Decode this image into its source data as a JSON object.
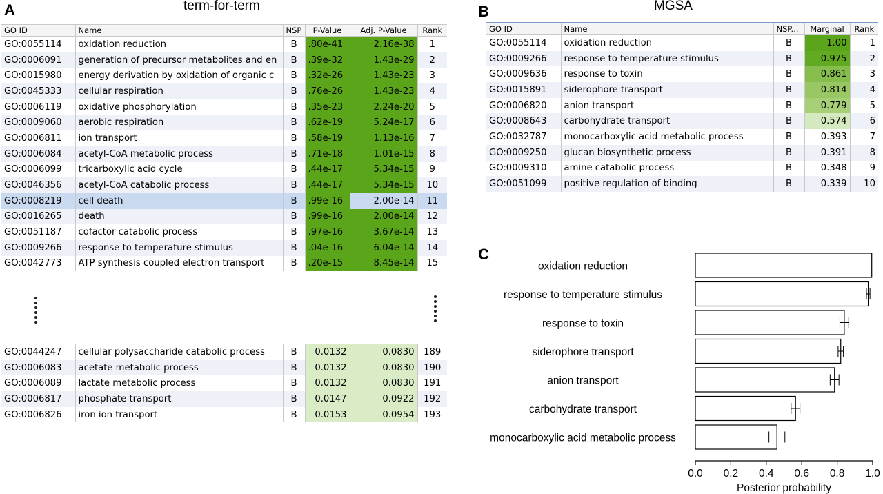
{
  "panel_a": {
    "letter": "A",
    "title": "term-for-term",
    "headers": [
      "GO ID",
      "Name",
      "NSP",
      "P-Value",
      "Adj. P-Value",
      "Rank"
    ],
    "rows_top": [
      {
        "id": "GO:0055114",
        "name": "oxidation reduction",
        "nsp": "B",
        "p": ".80e-41",
        "adj": "2.16e-38",
        "rank": "1"
      },
      {
        "id": "GO:0006091",
        "name": "generation of precursor metabolites and en",
        "nsp": "B",
        "p": ".39e-32",
        "adj": "1.43e-29",
        "rank": "2"
      },
      {
        "id": "GO:0015980",
        "name": "energy derivation by oxidation of organic c",
        "nsp": "B",
        "p": ".32e-26",
        "adj": "1.43e-23",
        "rank": "3"
      },
      {
        "id": "GO:0045333",
        "name": "cellular respiration",
        "nsp": "B",
        "p": ".76e-26",
        "adj": "1.43e-23",
        "rank": "4"
      },
      {
        "id": "GO:0006119",
        "name": "oxidative phosphorylation",
        "nsp": "B",
        "p": ".35e-23",
        "adj": "2.24e-20",
        "rank": "5"
      },
      {
        "id": "GO:0009060",
        "name": "aerobic respiration",
        "nsp": "B",
        "p": ".62e-19",
        "adj": "5.24e-17",
        "rank": "6"
      },
      {
        "id": "GO:0006811",
        "name": "ion transport",
        "nsp": "B",
        "p": ".58e-19",
        "adj": "1.13e-16",
        "rank": "7"
      },
      {
        "id": "GO:0006084",
        "name": "acetyl-CoA metabolic process",
        "nsp": "B",
        "p": ".71e-18",
        "adj": "1.01e-15",
        "rank": "8"
      },
      {
        "id": "GO:0006099",
        "name": "tricarboxylic acid cycle",
        "nsp": "B",
        "p": ".44e-17",
        "adj": "5.34e-15",
        "rank": "9"
      },
      {
        "id": "GO:0046356",
        "name": "acetyl-CoA catabolic process",
        "nsp": "B",
        "p": ".44e-17",
        "adj": "5.34e-15",
        "rank": "10"
      },
      {
        "id": "GO:0008219",
        "name": "cell death",
        "nsp": "B",
        "p": ".99e-16",
        "adj": "2.00e-14",
        "rank": "11"
      },
      {
        "id": "GO:0016265",
        "name": "death",
        "nsp": "B",
        "p": ".99e-16",
        "adj": "2.00e-14",
        "rank": "12"
      },
      {
        "id": "GO:0051187",
        "name": "cofactor catabolic process",
        "nsp": "B",
        "p": ".97e-16",
        "adj": "3.67e-14",
        "rank": "13"
      },
      {
        "id": "GO:0009266",
        "name": "response to temperature stimulus",
        "nsp": "B",
        "p": ".04e-16",
        "adj": "6.04e-14",
        "rank": "14"
      },
      {
        "id": "GO:0042773",
        "name": "ATP synthesis coupled electron transport",
        "nsp": "B",
        "p": ".20e-15",
        "adj": "8.45e-14",
        "rank": "15"
      }
    ],
    "rows_bottom": [
      {
        "id": "GO:0044247",
        "name": "cellular polysaccharide catabolic process",
        "nsp": "B",
        "p": "0.0132",
        "adj": "0.0830",
        "rank": "189"
      },
      {
        "id": "GO:0006083",
        "name": "acetate metabolic process",
        "nsp": "B",
        "p": "0.0132",
        "adj": "0.0830",
        "rank": "190"
      },
      {
        "id": "GO:0006089",
        "name": "lactate metabolic process",
        "nsp": "B",
        "p": "0.0132",
        "adj": "0.0830",
        "rank": "191"
      },
      {
        "id": "GO:0006817",
        "name": "phosphate transport",
        "nsp": "B",
        "p": "0.0147",
        "adj": "0.0922",
        "rank": "192"
      },
      {
        "id": "GO:0006826",
        "name": "iron ion transport",
        "nsp": "B",
        "p": "0.0153",
        "adj": "0.0954",
        "rank": "193"
      }
    ]
  },
  "panel_b": {
    "letter": "B",
    "title": "MGSA",
    "headers": [
      "GO ID",
      "Name",
      "NSP...",
      "Marginal",
      "Rank"
    ],
    "rows": [
      {
        "id": "GO:0055114",
        "name": "oxidation reduction",
        "nsp": "B",
        "marginal": "1.00",
        "rank": "1",
        "color": "#5aa51a"
      },
      {
        "id": "GO:0009266",
        "name": "response to temperature stimulus",
        "nsp": "B",
        "marginal": "0.975",
        "rank": "2",
        "color": "#62aa22"
      },
      {
        "id": "GO:0009636",
        "name": "response to toxin",
        "nsp": "B",
        "marginal": "0.861",
        "rank": "3",
        "color": "#86bd4c"
      },
      {
        "id": "GO:0015891",
        "name": "siderophore transport",
        "nsp": "B",
        "marginal": "0.814",
        "rank": "4",
        "color": "#98c764"
      },
      {
        "id": "GO:0006820",
        "name": "anion transport",
        "nsp": "B",
        "marginal": "0.779",
        "rank": "5",
        "color": "#a6cf78"
      },
      {
        "id": "GO:0008643",
        "name": "carbohydrate transport",
        "nsp": "B",
        "marginal": "0.574",
        "rank": "6",
        "color": "#d4e9bf"
      },
      {
        "id": "GO:0032787",
        "name": "monocarboxylic acid metabolic process",
        "nsp": "B",
        "marginal": "0.393",
        "rank": "7",
        "color": ""
      },
      {
        "id": "GO:0009250",
        "name": "glucan biosynthetic process",
        "nsp": "B",
        "marginal": "0.391",
        "rank": "8",
        "color": ""
      },
      {
        "id": "GO:0009310",
        "name": "amine catabolic process",
        "nsp": "B",
        "marginal": "0.348",
        "rank": "9",
        "color": ""
      },
      {
        "id": "GO:0051099",
        "name": "positive regulation of binding",
        "nsp": "B",
        "marginal": "0.339",
        "rank": "10",
        "color": ""
      }
    ]
  },
  "colors": {
    "strong_green": "#5aa51a",
    "pale_green": "#d9ecc6",
    "selected_row": "#c8d9f0",
    "alt_row": "#eef1f8"
  },
  "chart_data": {
    "type": "bar",
    "orientation": "horizontal",
    "panel_letter": "C",
    "categories": [
      "oxidation reduction",
      "response to temperature stimulus",
      "response to toxin",
      "siderophore transport",
      "anion transport",
      "carbohydrate transport",
      "monocarboxylic acid metabolic process"
    ],
    "values": [
      0.995,
      0.975,
      0.84,
      0.82,
      0.785,
      0.565,
      0.46
    ],
    "errors": [
      0.0,
      0.01,
      0.025,
      0.015,
      0.025,
      0.025,
      0.045
    ],
    "xlabel": "Posterior probability",
    "xlim": [
      0.0,
      1.0
    ],
    "xticks": [
      "0.0",
      "0.2",
      "0.4",
      "0.6",
      "0.8",
      "1.0"
    ],
    "grid": false,
    "legend": "none"
  }
}
